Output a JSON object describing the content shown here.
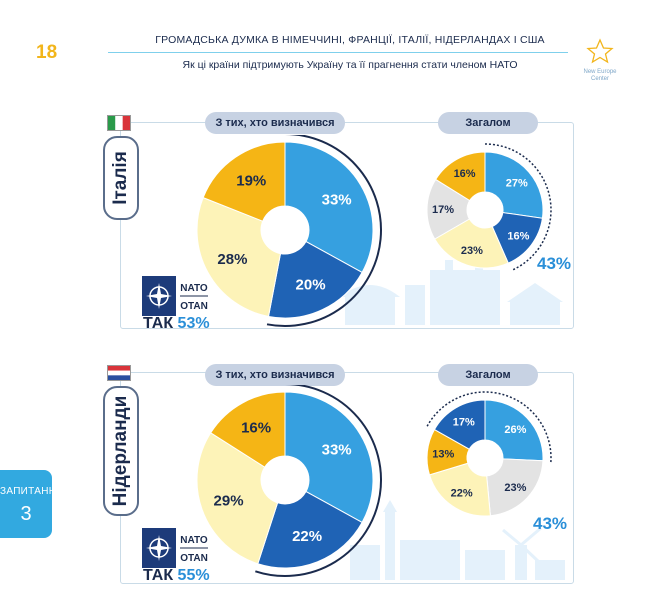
{
  "page": {
    "number": "18",
    "title": "ГРОМАДСЬКА ДУМКА В НІМЕЧЧИНІ, ФРАНЦІЇ, ІТАЛІЇ, НІДЕРЛАНДАХ І США",
    "subtitle": "Як ці країни підтримують Україну та її прагнення стати членом НАТО",
    "logo_text": "New Europe Center"
  },
  "sidebar": {
    "label": "ЗАПИТАННЯ",
    "number": "3"
  },
  "nato_logo": {
    "line1": "NATO",
    "line2": "OTAN"
  },
  "colors": {
    "dark_blue": "#1f63b5",
    "mid_blue": "#36a0e0",
    "yellow": "#f5b515",
    "light_yellow": "#fdf3b8",
    "gray": "#e3e3e3"
  },
  "chart_data": [
    {
      "type": "pie",
      "country": "Італія",
      "panels": [
        {
          "label": "З тих, хто визначився",
          "values": [
            33,
            20,
            28,
            19
          ],
          "value_labels": [
            "33%",
            "20%",
            "28%",
            "19%"
          ],
          "colors": [
            "mid_blue",
            "dark_blue",
            "light_yellow",
            "yellow"
          ],
          "yes_label": "ТАК",
          "yes_value": "53%"
        },
        {
          "label": "Загалом",
          "values": [
            27,
            16,
            23,
            17,
            16
          ],
          "value_labels": [
            "27%",
            "16%",
            "23%",
            "17%",
            "16%"
          ],
          "colors": [
            "mid_blue",
            "dark_blue",
            "light_yellow",
            "gray",
            "yellow"
          ],
          "yes_value": "43%"
        }
      ]
    },
    {
      "type": "pie",
      "country": "Нідерланди",
      "panels": [
        {
          "label": "З тих, хто визначився",
          "values": [
            33,
            22,
            29,
            16
          ],
          "value_labels": [
            "33%",
            "22%",
            "29%",
            "16%"
          ],
          "colors": [
            "mid_blue",
            "dark_blue",
            "light_yellow",
            "yellow"
          ],
          "yes_label": "ТАК",
          "yes_value": "55%"
        },
        {
          "label": "Загалом",
          "values": [
            26,
            23,
            22,
            13,
            17
          ],
          "value_labels": [
            "26%",
            "23%",
            "22%",
            "13%",
            "17%"
          ],
          "colors": [
            "mid_blue",
            "gray",
            "light_yellow",
            "yellow",
            "dark_blue"
          ],
          "yes_value": "43%"
        }
      ]
    }
  ]
}
